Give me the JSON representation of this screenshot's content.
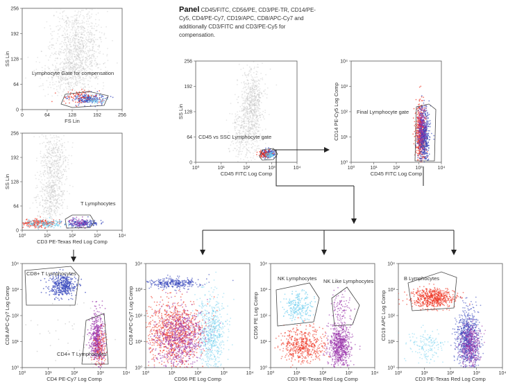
{
  "panel": {
    "title": "Panel",
    "description": "CD45/FITC, CD56/PE, CD3/PE-TR, CD14/PE-Cy5, CD4/PE-Cy7, CD19/APC, CD8/APC-Cy7 and additionally CD3/FITC and CD3/PE-Cy5 for compensation."
  },
  "colors": {
    "gray": "#b8b8b8",
    "red": "#ee3322",
    "blue": "#3344bb",
    "cyan": "#66ccee",
    "purple": "#9933aa",
    "arrow": "#222222"
  },
  "plots": [
    {
      "id": "fs-ss",
      "xlabel": "FS Lin",
      "ylabel": "SS Lin",
      "xticks": [
        "0",
        "64",
        "128",
        "192",
        "256"
      ],
      "yticks": [
        "0",
        "64",
        "128",
        "192",
        "256"
      ],
      "gate_label": "Lymphocyte Gate for compensation"
    },
    {
      "id": "cd3-ss",
      "xlabel": "CD3 PE-Texas Red Log Comp",
      "ylabel": "SS Lin",
      "xticks": [
        "10⁰",
        "10¹",
        "10²",
        "10³",
        "10⁴"
      ],
      "yticks": [
        "0",
        "64",
        "128",
        "192",
        "256"
      ],
      "gate_label": "T Lymphocytes"
    },
    {
      "id": "cd45-ss",
      "xlabel": "CD45 FITC Log Comp",
      "ylabel": "SS Lin",
      "xticks": [
        "10⁰",
        "10¹",
        "10²",
        "10³",
        "10⁴"
      ],
      "yticks": [
        "0",
        "64",
        "128",
        "192",
        "256"
      ],
      "gate_label": "CD45 vs SSC Lymphocyte gate"
    },
    {
      "id": "cd45-cd14",
      "xlabel": "CD45 FITC Log Comp",
      "ylabel": "CD14 PE-Cy5 Log Comp",
      "xticks": [
        "10⁰",
        "10¹",
        "10²",
        "10³",
        "10⁴"
      ],
      "yticks": [
        "10⁰",
        "10¹",
        "10²",
        "10³",
        "10⁴"
      ],
      "gate_label": "Final Lymphocyte gate"
    },
    {
      "id": "cd4-cd8",
      "xlabel": "CD4 PE-Cy7 Log Comp",
      "ylabel": "CD8 APC-Cy7 Log Comp",
      "xticks": [
        "10⁰",
        "10¹",
        "10²",
        "10³",
        "10⁴"
      ],
      "yticks": [
        "10⁰",
        "10¹",
        "10²",
        "10³",
        "10⁴"
      ],
      "gate_labels": [
        "CD8+ T Lymphocytes",
        "CD4+ T Lymphocytes"
      ]
    },
    {
      "id": "cd56-cd8",
      "xlabel": "CD56 PE Log Comp",
      "ylabel": "CD8 APC-Cy7 Log Comp",
      "xticks": [
        "10⁰",
        "10¹",
        "10²",
        "10³",
        "10⁴"
      ],
      "yticks": [
        "10⁰",
        "10¹",
        "10²",
        "10³",
        "10⁴"
      ]
    },
    {
      "id": "cd3-cd56",
      "xlabel": "CD3 PE-Texas Red Log Comp",
      "ylabel": "CD56 PE Log Comp",
      "xticks": [
        "10⁰",
        "10¹",
        "10²",
        "10³",
        "10⁴"
      ],
      "yticks": [
        "10⁰",
        "10¹",
        "10²",
        "10³",
        "10⁴"
      ],
      "gate_labels": [
        "NK Lymphocytes",
        "NK Like Lymphocytes"
      ]
    },
    {
      "id": "cd3-cd19",
      "xlabel": "CD3 PE-Texas Red Log Comp",
      "ylabel": "CD19 APC Log Comp",
      "xticks": [
        "10⁰",
        "10¹",
        "10²",
        "10³",
        "10⁴"
      ],
      "yticks": [
        "10⁰",
        "10¹",
        "10²",
        "10³",
        "10⁴"
      ],
      "gate_label": "B Lymphocytes"
    }
  ]
}
